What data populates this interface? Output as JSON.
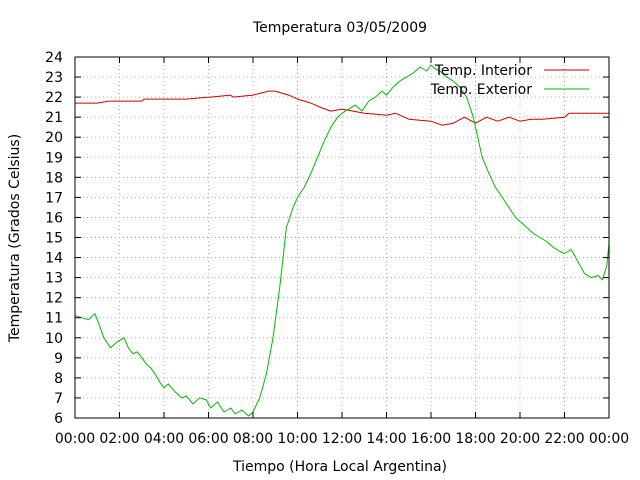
{
  "chart_data": {
    "type": "line",
    "title": "Temperatura 03/05/2009",
    "xlabel": "Tiempo (Hora Local Argentina)",
    "ylabel": "Temperatura (Grados Celsius)",
    "xlim": [
      0,
      24
    ],
    "ylim": [
      6,
      24
    ],
    "grid": true,
    "legend_position": "top-right",
    "x_ticks": [
      0,
      2,
      4,
      6,
      8,
      10,
      12,
      14,
      16,
      18,
      20,
      22,
      24
    ],
    "x_tick_labels": [
      "00:00",
      "02:00",
      "04:00",
      "06:00",
      "08:00",
      "10:00",
      "12:00",
      "14:00",
      "16:00",
      "18:00",
      "20:00",
      "22:00",
      "00:00"
    ],
    "y_ticks": [
      6,
      7,
      8,
      9,
      10,
      11,
      12,
      13,
      14,
      15,
      16,
      17,
      18,
      19,
      20,
      21,
      22,
      23,
      24
    ],
    "series": [
      {
        "name": "Temp. Interior",
        "color": "#cc0000",
        "x": [
          0,
          1,
          1.5,
          2,
          3,
          3.1,
          4,
          5,
          6,
          6.1,
          7,
          7.1,
          8,
          8.7,
          9,
          9.6,
          10,
          10.6,
          11,
          11.5,
          12,
          12.5,
          13,
          14,
          14.4,
          15,
          16,
          16.5,
          17,
          17.5,
          18,
          18.5,
          19,
          19.5,
          20,
          20.5,
          21,
          22,
          22.2,
          23,
          24
        ],
        "values": [
          21.7,
          21.7,
          21.8,
          21.8,
          21.8,
          21.9,
          21.9,
          21.9,
          22.0,
          22.0,
          22.1,
          22.0,
          22.1,
          22.3,
          22.3,
          22.1,
          21.9,
          21.7,
          21.5,
          21.3,
          21.4,
          21.3,
          21.2,
          21.1,
          21.2,
          20.9,
          20.8,
          20.6,
          20.7,
          21.0,
          20.7,
          21.0,
          20.8,
          21.0,
          20.8,
          20.9,
          20.9,
          21.0,
          21.2,
          21.2,
          21.2
        ]
      },
      {
        "name": "Temp. Exterior",
        "color": "#00bb00",
        "x": [
          0,
          0.3,
          0.6,
          0.9,
          1.1,
          1.3,
          1.6,
          1.9,
          2.2,
          2.4,
          2.6,
          2.8,
          3.0,
          3.2,
          3.4,
          3.6,
          3.8,
          4.0,
          4.2,
          4.5,
          4.8,
          5.0,
          5.3,
          5.6,
          5.9,
          6.1,
          6.4,
          6.7,
          7.0,
          7.2,
          7.5,
          7.8,
          8.0,
          8.3,
          8.6,
          8.9,
          9.2,
          9.5,
          9.8,
          10.0,
          10.3,
          10.6,
          10.9,
          11.2,
          11.5,
          11.8,
          12.0,
          12.3,
          12.6,
          12.9,
          13.2,
          13.5,
          13.8,
          14.0,
          14.3,
          14.6,
          14.9,
          15.2,
          15.5,
          15.8,
          16.0,
          16.2,
          16.4,
          16.7,
          17.0,
          17.3,
          17.6,
          17.9,
          18.1,
          18.3,
          18.6,
          18.9,
          19.2,
          19.5,
          19.8,
          20.0,
          20.3,
          20.6,
          20.9,
          21.2,
          21.5,
          21.8,
          22.0,
          22.3,
          22.6,
          22.9,
          23.2,
          23.5,
          23.7,
          23.9,
          24.0
        ],
        "values": [
          11.1,
          11.0,
          10.9,
          11.2,
          10.6,
          10.0,
          9.5,
          9.8,
          10.0,
          9.5,
          9.2,
          9.3,
          9.0,
          8.7,
          8.5,
          8.2,
          7.8,
          7.5,
          7.7,
          7.3,
          7.0,
          7.1,
          6.7,
          7.0,
          6.9,
          6.5,
          6.8,
          6.3,
          6.5,
          6.2,
          6.4,
          6.1,
          6.3,
          7.0,
          8.2,
          10.0,
          12.5,
          15.5,
          16.5,
          17.0,
          17.5,
          18.2,
          19.0,
          19.8,
          20.5,
          21.0,
          21.2,
          21.4,
          21.6,
          21.3,
          21.8,
          22.0,
          22.3,
          22.1,
          22.5,
          22.8,
          23.0,
          23.2,
          23.5,
          23.3,
          23.6,
          23.4,
          23.3,
          23.0,
          22.8,
          22.5,
          22.0,
          21.0,
          20.0,
          19.0,
          18.2,
          17.5,
          17.0,
          16.5,
          16.0,
          15.8,
          15.5,
          15.2,
          15.0,
          14.8,
          14.5,
          14.3,
          14.2,
          14.4,
          13.8,
          13.2,
          13.0,
          13.1,
          12.9,
          13.6,
          14.7
        ]
      }
    ]
  }
}
